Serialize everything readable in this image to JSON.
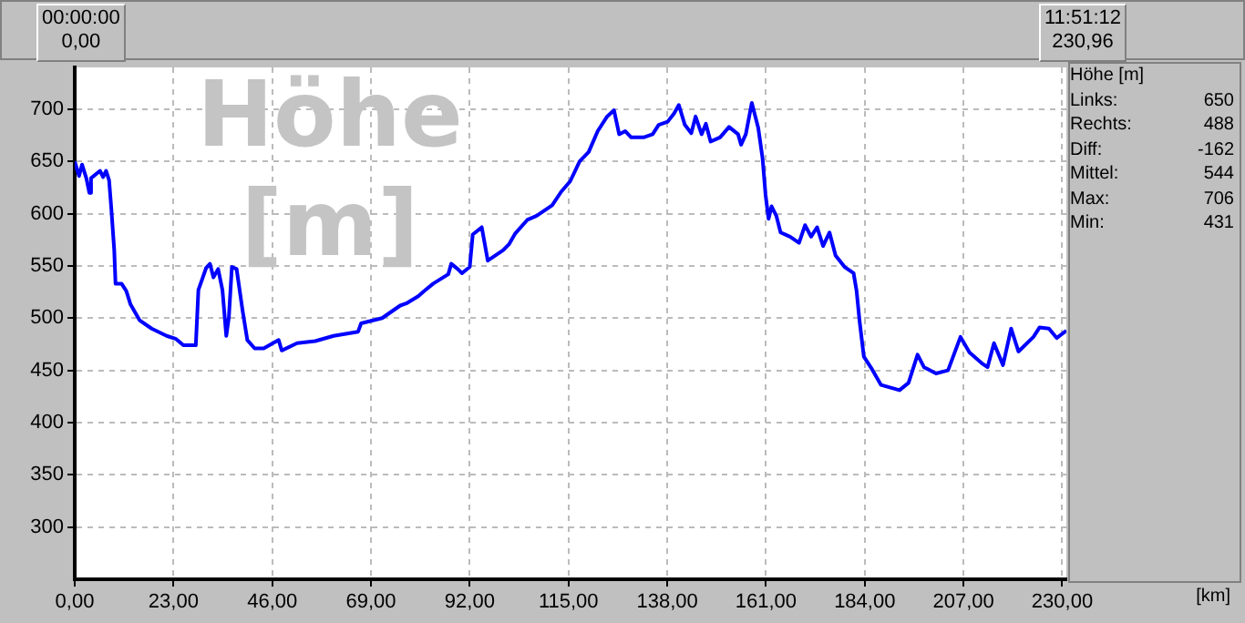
{
  "chart_data": {
    "type": "line",
    "ylabel": "Höhe [m]",
    "x": [
      0,
      1.0,
      1.7,
      2.7,
      3.4,
      3.8,
      5.9,
      6.6,
      7.3,
      8.0,
      8.5,
      9.2,
      9.5,
      10.9,
      12.0,
      13.0,
      15.1,
      17.9,
      21.4,
      23.6,
      25.3,
      28.2,
      28.8,
      30.6,
      31.5,
      32.3,
      33.4,
      34.4,
      35.3,
      35.9,
      36.6,
      37.7,
      39.1,
      40.2,
      41.9,
      44.0,
      47.5,
      48.2,
      51.8,
      56.0,
      60.3,
      66.0,
      66.7,
      71.6,
      75.8,
      77.2,
      80.0,
      81.4,
      83.5,
      87.0,
      87.7,
      89.2,
      90.2,
      92.0,
      92.7,
      94.8,
      96.2,
      99.8,
      101.2,
      102.6,
      105.4,
      107.6,
      111.2,
      113.3,
      115.4,
      117.6,
      119.7,
      121.8,
      124.0,
      125.6,
      126.8,
      128.2,
      129.6,
      132.5,
      134.6,
      136.0,
      138.1,
      139.6,
      140.7,
      142.1,
      143.6,
      144.6,
      146.0,
      147.0,
      148.1,
      150.3,
      152.4,
      154.5,
      155.2,
      156.3,
      157.7,
      159.2,
      160.2,
      160.9,
      161.6,
      162.3,
      163.4,
      164.4,
      166.6,
      168.7,
      170.1,
      171.5,
      172.9,
      174.3,
      175.8,
      177.2,
      179.3,
      181.4,
      182.1,
      182.8,
      183.8,
      185.7,
      187.8,
      192.1,
      194.2,
      196.3,
      197.8,
      200.6,
      203.4,
      206.3,
      208.4,
      211.2,
      212.6,
      214.1,
      216.2,
      218.1,
      219.8,
      223.3,
      224.7,
      226.9,
      228.7,
      230.96
    ],
    "series": [
      {
        "color": "#0000ff",
        "values": [
          650,
          636,
          647,
          634,
          620,
          634,
          641,
          635,
          641,
          632,
          606,
          565,
          533,
          533,
          526,
          513,
          498,
          490,
          483,
          480,
          474,
          474,
          527,
          548,
          552,
          539,
          547,
          527,
          483,
          501,
          549,
          547,
          507,
          479,
          471,
          471,
          479,
          469,
          476,
          478,
          483,
          487,
          495,
          500,
          512,
          514,
          521,
          526,
          533,
          542,
          552,
          547,
          543,
          549,
          580,
          587,
          555,
          565,
          571,
          581,
          594,
          598,
          608,
          621,
          631,
          650,
          659,
          679,
          693,
          699,
          676,
          679,
          673,
          673,
          676,
          685,
          688,
          696,
          704,
          685,
          677,
          693,
          676,
          686,
          669,
          673,
          683,
          676,
          666,
          676,
          706,
          682,
          653,
          618,
          595,
          607,
          598,
          582,
          578,
          572,
          589,
          578,
          587,
          569,
          582,
          560,
          549,
          543,
          526,
          497,
          463,
          451,
          436,
          431,
          438,
          465,
          453,
          447,
          450,
          482,
          467,
          457,
          453,
          476,
          455,
          490,
          468,
          482,
          491,
          490,
          481,
          488
        ]
      }
    ],
    "xlim": [
      0,
      230.96
    ],
    "ylim": [
      250,
      740
    ],
    "xticks": [
      {
        "value": 0,
        "label": "0,00"
      },
      {
        "value": 23,
        "label": "23,00"
      },
      {
        "value": 46,
        "label": "46,00"
      },
      {
        "value": 69,
        "label": "69,00"
      },
      {
        "value": 92,
        "label": "92,00"
      },
      {
        "value": 115,
        "label": "115,00"
      },
      {
        "value": 138,
        "label": "138,00"
      },
      {
        "value": 161,
        "label": "161,00"
      },
      {
        "value": 184,
        "label": "184,00"
      },
      {
        "value": 207,
        "label": "207,00"
      },
      {
        "value": 230,
        "label": "230,00"
      }
    ],
    "yticks": [
      300,
      350,
      400,
      450,
      500,
      550,
      600,
      650,
      700
    ],
    "grid": true,
    "legend": false,
    "marker": "none",
    "line_style": "solid",
    "annotations": [
      "00:00:00",
      "0,00",
      "11:51:12",
      "230,96",
      "[km]",
      "Höhe [m]",
      "Links:",
      "650",
      "Rechts:",
      "488",
      "Diff:",
      "-162",
      "Mittel:",
      "544",
      "Max:",
      "706",
      "Min:",
      "431"
    ]
  }
}
